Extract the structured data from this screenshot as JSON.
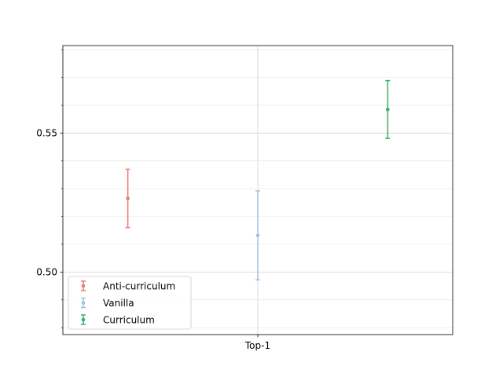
{
  "chart_data": {
    "type": "errorbar",
    "categories": [
      "Top-1"
    ],
    "series": [
      {
        "name": "Anti-curriculum",
        "x_offset": -0.5,
        "value": 0.5265,
        "lower": 0.516,
        "upper": 0.537,
        "color": "#ee7b6a"
      },
      {
        "name": "Vanilla",
        "x_offset": 0.0,
        "value": 0.5132,
        "lower": 0.4972,
        "upper": 0.5292,
        "color": "#a5bfe0"
      },
      {
        "name": "Curriculum",
        "x_offset": 0.5,
        "value": 0.5585,
        "lower": 0.5481,
        "upper": 0.5689,
        "color": "#3bb06a"
      }
    ],
    "xlim": [
      -0.75,
      0.75
    ],
    "ylim": [
      0.4775,
      0.5815
    ],
    "major_yticks": [
      0.5,
      0.55
    ],
    "major_ytick_labels": [
      "0.50",
      "0.55"
    ],
    "minor_yticks": [
      0.48,
      0.49,
      0.51,
      0.52,
      0.53,
      0.54,
      0.56,
      0.57,
      0.58
    ],
    "grid": true,
    "legend_position": "lower-left",
    "xlabel": "",
    "ylabel": "",
    "title": ""
  }
}
